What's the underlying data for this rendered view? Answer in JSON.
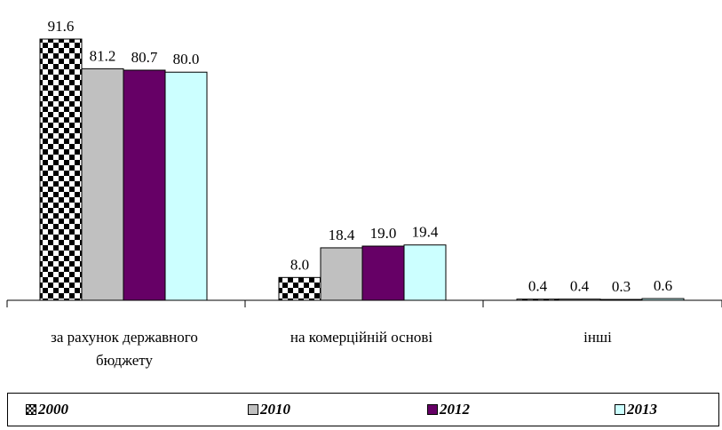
{
  "chart_data": {
    "type": "bar",
    "categories": [
      "за рахунок державного бюджету",
      "на комерційній основі",
      "інші"
    ],
    "category_lines": [
      [
        "за рахунок державного",
        "бюджету"
      ],
      [
        "на комерційній основі"
      ],
      [
        "інші"
      ]
    ],
    "series": [
      {
        "name": "2000",
        "values": [
          91.6,
          8.0,
          0.4
        ],
        "color": "#ffffff",
        "pattern": "checker"
      },
      {
        "name": "2010",
        "values": [
          81.2,
          18.4,
          0.4
        ],
        "color": "#c0c0c0"
      },
      {
        "name": "2012",
        "values": [
          80.7,
          19.0,
          0.3
        ],
        "color": "#660066"
      },
      {
        "name": "2013",
        "values": [
          80.0,
          19.4,
          0.6
        ],
        "color": "#ccffff"
      }
    ],
    "value_labels": [
      [
        "91.6",
        "8.0",
        "0.4"
      ],
      [
        "81.2",
        "18.4",
        "0.4"
      ],
      [
        "80.7",
        "19.0",
        "0.3"
      ],
      [
        "80.0",
        "19.4",
        "0.6"
      ]
    ],
    "ylim": [
      0,
      100
    ],
    "grid": false,
    "legend_position": "bottom"
  }
}
